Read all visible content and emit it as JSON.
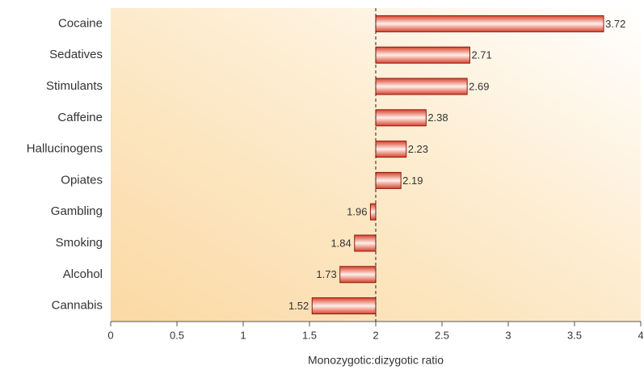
{
  "chart_data": {
    "type": "bar",
    "orientation": "horizontal",
    "categories": [
      "Cocaine",
      "Sedatives",
      "Stimulants",
      "Caffeine",
      "Hallucinogens",
      "Opiates",
      "Gambling",
      "Smoking",
      "Alcohol",
      "Cannabis"
    ],
    "values": [
      3.72,
      2.71,
      2.69,
      2.38,
      2.23,
      2.19,
      1.96,
      1.84,
      1.73,
      1.52
    ],
    "color": "#d9412b",
    "baseline": 2,
    "xlabel": "Monozygotic:dizygotic ratio",
    "xlim": [
      0,
      4
    ],
    "xticks": [
      0,
      0.5,
      1,
      1.5,
      2,
      2.5,
      3,
      3.5,
      4
    ]
  }
}
